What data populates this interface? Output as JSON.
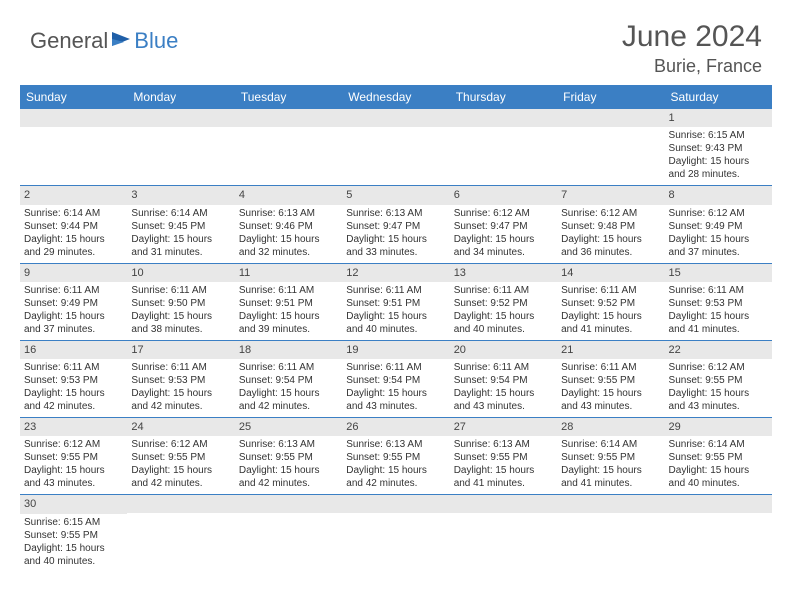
{
  "logo": {
    "general": "General",
    "blue": "Blue"
  },
  "title": "June 2024",
  "location": "Burie, France",
  "weekdays": [
    "Sunday",
    "Monday",
    "Tuesday",
    "Wednesday",
    "Thursday",
    "Friday",
    "Saturday"
  ],
  "colors": {
    "header_bg": "#3b7fc4",
    "header_text": "#ffffff",
    "daynum_bg": "#e8e8e8",
    "border": "#3b7fc4"
  },
  "weeks": [
    [
      {
        "n": "",
        "sr": "",
        "ss": "",
        "dl": ""
      },
      {
        "n": "",
        "sr": "",
        "ss": "",
        "dl": ""
      },
      {
        "n": "",
        "sr": "",
        "ss": "",
        "dl": ""
      },
      {
        "n": "",
        "sr": "",
        "ss": "",
        "dl": ""
      },
      {
        "n": "",
        "sr": "",
        "ss": "",
        "dl": ""
      },
      {
        "n": "",
        "sr": "",
        "ss": "",
        "dl": ""
      },
      {
        "n": "1",
        "sr": "Sunrise: 6:15 AM",
        "ss": "Sunset: 9:43 PM",
        "dl": "Daylight: 15 hours and 28 minutes."
      }
    ],
    [
      {
        "n": "2",
        "sr": "Sunrise: 6:14 AM",
        "ss": "Sunset: 9:44 PM",
        "dl": "Daylight: 15 hours and 29 minutes."
      },
      {
        "n": "3",
        "sr": "Sunrise: 6:14 AM",
        "ss": "Sunset: 9:45 PM",
        "dl": "Daylight: 15 hours and 31 minutes."
      },
      {
        "n": "4",
        "sr": "Sunrise: 6:13 AM",
        "ss": "Sunset: 9:46 PM",
        "dl": "Daylight: 15 hours and 32 minutes."
      },
      {
        "n": "5",
        "sr": "Sunrise: 6:13 AM",
        "ss": "Sunset: 9:47 PM",
        "dl": "Daylight: 15 hours and 33 minutes."
      },
      {
        "n": "6",
        "sr": "Sunrise: 6:12 AM",
        "ss": "Sunset: 9:47 PM",
        "dl": "Daylight: 15 hours and 34 minutes."
      },
      {
        "n": "7",
        "sr": "Sunrise: 6:12 AM",
        "ss": "Sunset: 9:48 PM",
        "dl": "Daylight: 15 hours and 36 minutes."
      },
      {
        "n": "8",
        "sr": "Sunrise: 6:12 AM",
        "ss": "Sunset: 9:49 PM",
        "dl": "Daylight: 15 hours and 37 minutes."
      }
    ],
    [
      {
        "n": "9",
        "sr": "Sunrise: 6:11 AM",
        "ss": "Sunset: 9:49 PM",
        "dl": "Daylight: 15 hours and 37 minutes."
      },
      {
        "n": "10",
        "sr": "Sunrise: 6:11 AM",
        "ss": "Sunset: 9:50 PM",
        "dl": "Daylight: 15 hours and 38 minutes."
      },
      {
        "n": "11",
        "sr": "Sunrise: 6:11 AM",
        "ss": "Sunset: 9:51 PM",
        "dl": "Daylight: 15 hours and 39 minutes."
      },
      {
        "n": "12",
        "sr": "Sunrise: 6:11 AM",
        "ss": "Sunset: 9:51 PM",
        "dl": "Daylight: 15 hours and 40 minutes."
      },
      {
        "n": "13",
        "sr": "Sunrise: 6:11 AM",
        "ss": "Sunset: 9:52 PM",
        "dl": "Daylight: 15 hours and 40 minutes."
      },
      {
        "n": "14",
        "sr": "Sunrise: 6:11 AM",
        "ss": "Sunset: 9:52 PM",
        "dl": "Daylight: 15 hours and 41 minutes."
      },
      {
        "n": "15",
        "sr": "Sunrise: 6:11 AM",
        "ss": "Sunset: 9:53 PM",
        "dl": "Daylight: 15 hours and 41 minutes."
      }
    ],
    [
      {
        "n": "16",
        "sr": "Sunrise: 6:11 AM",
        "ss": "Sunset: 9:53 PM",
        "dl": "Daylight: 15 hours and 42 minutes."
      },
      {
        "n": "17",
        "sr": "Sunrise: 6:11 AM",
        "ss": "Sunset: 9:53 PM",
        "dl": "Daylight: 15 hours and 42 minutes."
      },
      {
        "n": "18",
        "sr": "Sunrise: 6:11 AM",
        "ss": "Sunset: 9:54 PM",
        "dl": "Daylight: 15 hours and 42 minutes."
      },
      {
        "n": "19",
        "sr": "Sunrise: 6:11 AM",
        "ss": "Sunset: 9:54 PM",
        "dl": "Daylight: 15 hours and 43 minutes."
      },
      {
        "n": "20",
        "sr": "Sunrise: 6:11 AM",
        "ss": "Sunset: 9:54 PM",
        "dl": "Daylight: 15 hours and 43 minutes."
      },
      {
        "n": "21",
        "sr": "Sunrise: 6:11 AM",
        "ss": "Sunset: 9:55 PM",
        "dl": "Daylight: 15 hours and 43 minutes."
      },
      {
        "n": "22",
        "sr": "Sunrise: 6:12 AM",
        "ss": "Sunset: 9:55 PM",
        "dl": "Daylight: 15 hours and 43 minutes."
      }
    ],
    [
      {
        "n": "23",
        "sr": "Sunrise: 6:12 AM",
        "ss": "Sunset: 9:55 PM",
        "dl": "Daylight: 15 hours and 43 minutes."
      },
      {
        "n": "24",
        "sr": "Sunrise: 6:12 AM",
        "ss": "Sunset: 9:55 PM",
        "dl": "Daylight: 15 hours and 42 minutes."
      },
      {
        "n": "25",
        "sr": "Sunrise: 6:13 AM",
        "ss": "Sunset: 9:55 PM",
        "dl": "Daylight: 15 hours and 42 minutes."
      },
      {
        "n": "26",
        "sr": "Sunrise: 6:13 AM",
        "ss": "Sunset: 9:55 PM",
        "dl": "Daylight: 15 hours and 42 minutes."
      },
      {
        "n": "27",
        "sr": "Sunrise: 6:13 AM",
        "ss": "Sunset: 9:55 PM",
        "dl": "Daylight: 15 hours and 41 minutes."
      },
      {
        "n": "28",
        "sr": "Sunrise: 6:14 AM",
        "ss": "Sunset: 9:55 PM",
        "dl": "Daylight: 15 hours and 41 minutes."
      },
      {
        "n": "29",
        "sr": "Sunrise: 6:14 AM",
        "ss": "Sunset: 9:55 PM",
        "dl": "Daylight: 15 hours and 40 minutes."
      }
    ],
    [
      {
        "n": "30",
        "sr": "Sunrise: 6:15 AM",
        "ss": "Sunset: 9:55 PM",
        "dl": "Daylight: 15 hours and 40 minutes."
      },
      {
        "n": "",
        "sr": "",
        "ss": "",
        "dl": ""
      },
      {
        "n": "",
        "sr": "",
        "ss": "",
        "dl": ""
      },
      {
        "n": "",
        "sr": "",
        "ss": "",
        "dl": ""
      },
      {
        "n": "",
        "sr": "",
        "ss": "",
        "dl": ""
      },
      {
        "n": "",
        "sr": "",
        "ss": "",
        "dl": ""
      },
      {
        "n": "",
        "sr": "",
        "ss": "",
        "dl": ""
      }
    ]
  ]
}
